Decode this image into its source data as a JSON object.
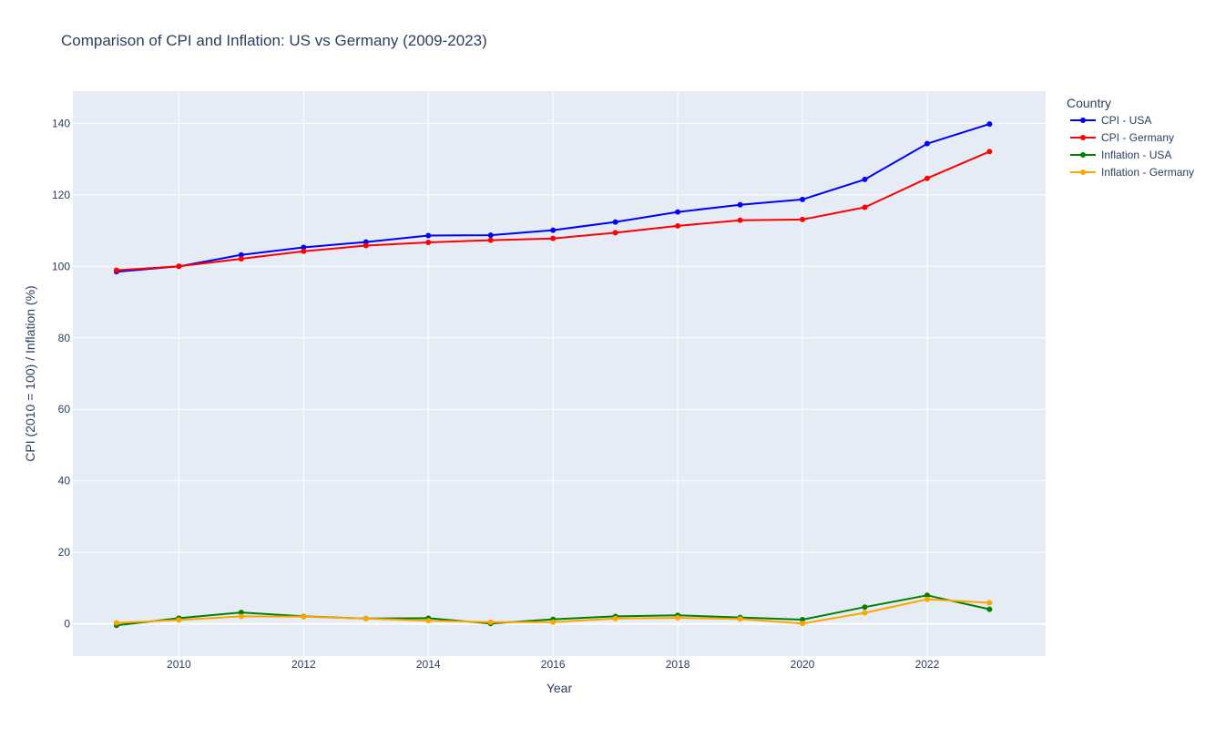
{
  "chart_data": {
    "type": "line",
    "title": "Comparison of CPI and Inflation: US vs Germany (2009-2023)",
    "xlabel": "Year",
    "ylabel": "CPI (2010 = 100) / Inflation (%)",
    "x": [
      2009,
      2010,
      2011,
      2012,
      2013,
      2014,
      2015,
      2016,
      2017,
      2018,
      2019,
      2020,
      2021,
      2022,
      2023
    ],
    "xlim": [
      2008.3,
      2023.9
    ],
    "ylim": [
      -9,
      149
    ],
    "xticks": [
      2010,
      2012,
      2014,
      2016,
      2018,
      2020,
      2022
    ],
    "yticks": [
      0,
      20,
      40,
      60,
      80,
      100,
      120,
      140
    ],
    "grid": true,
    "legend": {
      "title": "Country",
      "placement": "top-right, outside plot"
    },
    "background": "#e5ecf6",
    "series": [
      {
        "name": "CPI - USA",
        "color": "#0000ff",
        "values": [
          98.5,
          100.0,
          103.2,
          105.3,
          106.8,
          108.6,
          108.7,
          110.1,
          112.4,
          115.2,
          117.2,
          118.7,
          124.3,
          134.3,
          139.8
        ]
      },
      {
        "name": "CPI - Germany",
        "color": "#ff0000",
        "values": [
          98.9,
          100.0,
          102.1,
          104.2,
          105.8,
          106.7,
          107.3,
          107.8,
          109.4,
          111.3,
          112.9,
          113.1,
          116.5,
          124.6,
          132.1
        ]
      },
      {
        "name": "Inflation - USA",
        "color": "#008000",
        "values": [
          -0.4,
          1.6,
          3.2,
          2.1,
          1.5,
          1.6,
          0.1,
          1.3,
          2.1,
          2.4,
          1.8,
          1.2,
          4.7,
          8.0,
          4.1
        ]
      },
      {
        "name": "Inflation - Germany",
        "color": "#ffa500",
        "values": [
          0.3,
          1.1,
          2.1,
          2.0,
          1.5,
          0.9,
          0.5,
          0.5,
          1.5,
          1.7,
          1.4,
          0.1,
          3.1,
          6.9,
          5.9
        ]
      }
    ]
  }
}
